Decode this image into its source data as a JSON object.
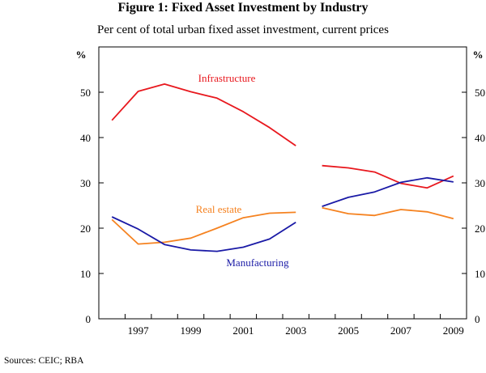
{
  "title": "Figure 1: Fixed Asset Investment by Industry",
  "subtitle": "Per cent of total urban fixed asset investment, current prices",
  "sources": "Sources: CEIC; RBA",
  "chart_data": {
    "type": "line",
    "title": "Figure 1: Fixed Asset Investment by Industry",
    "subtitle": "Per cent of total urban fixed asset investment, current prices",
    "ylabel_left": "%",
    "ylabel_right": "%",
    "ylim": [
      0,
      60
    ],
    "yticks": [
      0,
      10,
      20,
      30,
      40,
      50
    ],
    "xlim": [
      1995.5,
      2009.5
    ],
    "xticks": [
      1997,
      1999,
      2001,
      2003,
      2005,
      2007,
      2009
    ],
    "series": [
      {
        "name": "Infrastructure",
        "color": "#e8181e",
        "segments": [
          {
            "x": [
              1996,
              1997,
              1998,
              1999,
              2000,
              2001,
              2002,
              2003
            ],
            "values": [
              43.8,
              50.2,
              51.8,
              50.1,
              48.7,
              45.7,
              42.2,
              38.2
            ]
          },
          {
            "x": [
              2004,
              2005,
              2006,
              2007,
              2008,
              2009
            ],
            "values": [
              33.8,
              33.3,
              32.4,
              29.9,
              28.9,
              31.5
            ]
          }
        ]
      },
      {
        "name": "Real estate",
        "color": "#f58220",
        "segments": [
          {
            "x": [
              1996,
              1997,
              1998,
              1999,
              2000,
              2001,
              2002,
              2003
            ],
            "values": [
              21.9,
              16.5,
              16.9,
              17.8,
              20.0,
              22.3,
              23.3,
              23.5
            ]
          },
          {
            "x": [
              2004,
              2005,
              2006,
              2007,
              2008,
              2009
            ],
            "values": [
              24.5,
              23.2,
              22.8,
              24.1,
              23.6,
              22.1
            ]
          }
        ]
      },
      {
        "name": "Manufacturing",
        "color": "#1a1aa6",
        "segments": [
          {
            "x": [
              1996,
              1997,
              1998,
              1999,
              2000,
              2001,
              2002,
              2003
            ],
            "values": [
              22.5,
              19.8,
              16.4,
              15.2,
              14.9,
              15.8,
              17.6,
              21.3
            ]
          },
          {
            "x": [
              2004,
              2005,
              2006,
              2007,
              2008,
              2009
            ],
            "values": [
              24.8,
              26.8,
              28.0,
              30.1,
              31.1,
              30.2
            ]
          }
        ]
      }
    ],
    "annotations": [
      {
        "text": "Infrastructure",
        "series": "Infrastructure"
      },
      {
        "text": "Real estate",
        "series": "Real estate"
      },
      {
        "text": "Manufacturing",
        "series": "Manufacturing"
      }
    ]
  }
}
